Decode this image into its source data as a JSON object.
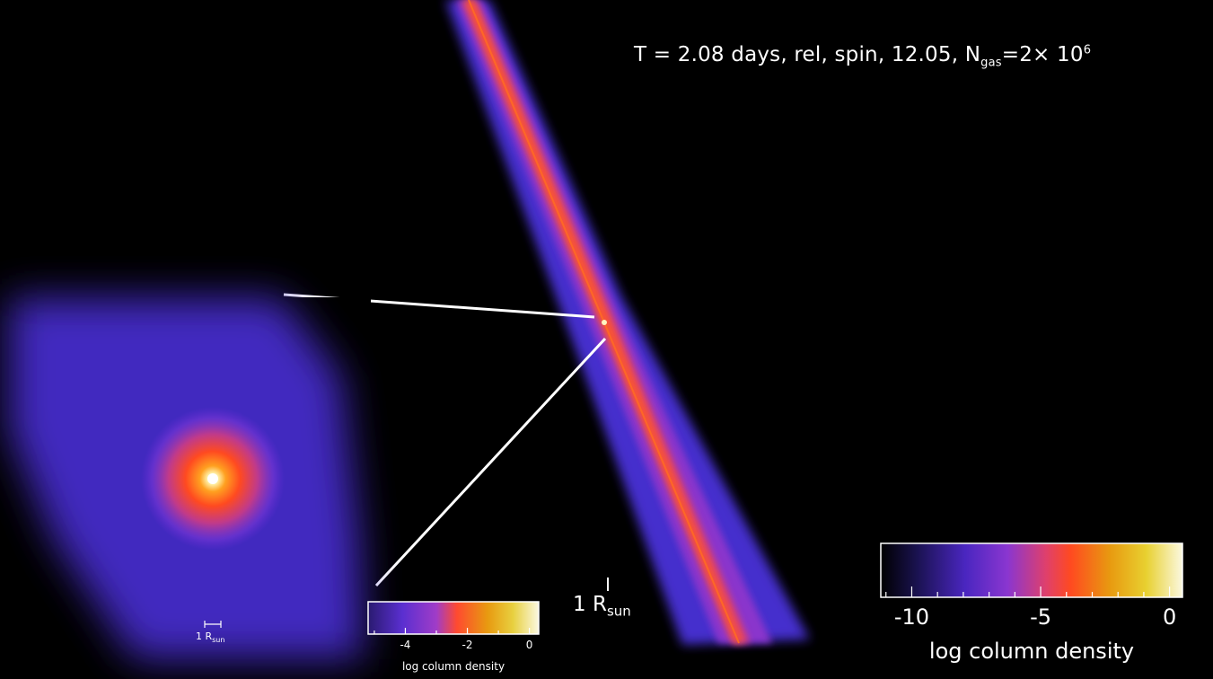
{
  "title": {
    "prefix": "T = 2.08 days, rel, spin, 12.05, N",
    "sub": "gas",
    "mid": "=2× 10",
    "sup": "6"
  },
  "main_scale": {
    "number": "1 R",
    "sub": "sun"
  },
  "inset_scale": {
    "number": "1 R",
    "sub": "sun"
  },
  "main_colorbar": {
    "ticks": [
      "-10",
      "-5",
      "0"
    ],
    "tick_values": [
      -10,
      -5,
      0
    ],
    "range": [
      -11.2,
      0.5
    ],
    "label": "log column density"
  },
  "inset_colorbar": {
    "ticks": [
      "-4",
      "-2",
      "0"
    ],
    "tick_values": [
      -4,
      -2,
      0
    ],
    "range": [
      -5.2,
      0.3
    ],
    "label": "log column density"
  },
  "colormap": [
    "#000000",
    "#15103a",
    "#3b1f8f",
    "#6a2bd6",
    "#a23ec8",
    "#e0406a",
    "#ff4a20",
    "#e89a10",
    "#e8d020",
    "#fbf6d0",
    "#ffffff"
  ]
}
